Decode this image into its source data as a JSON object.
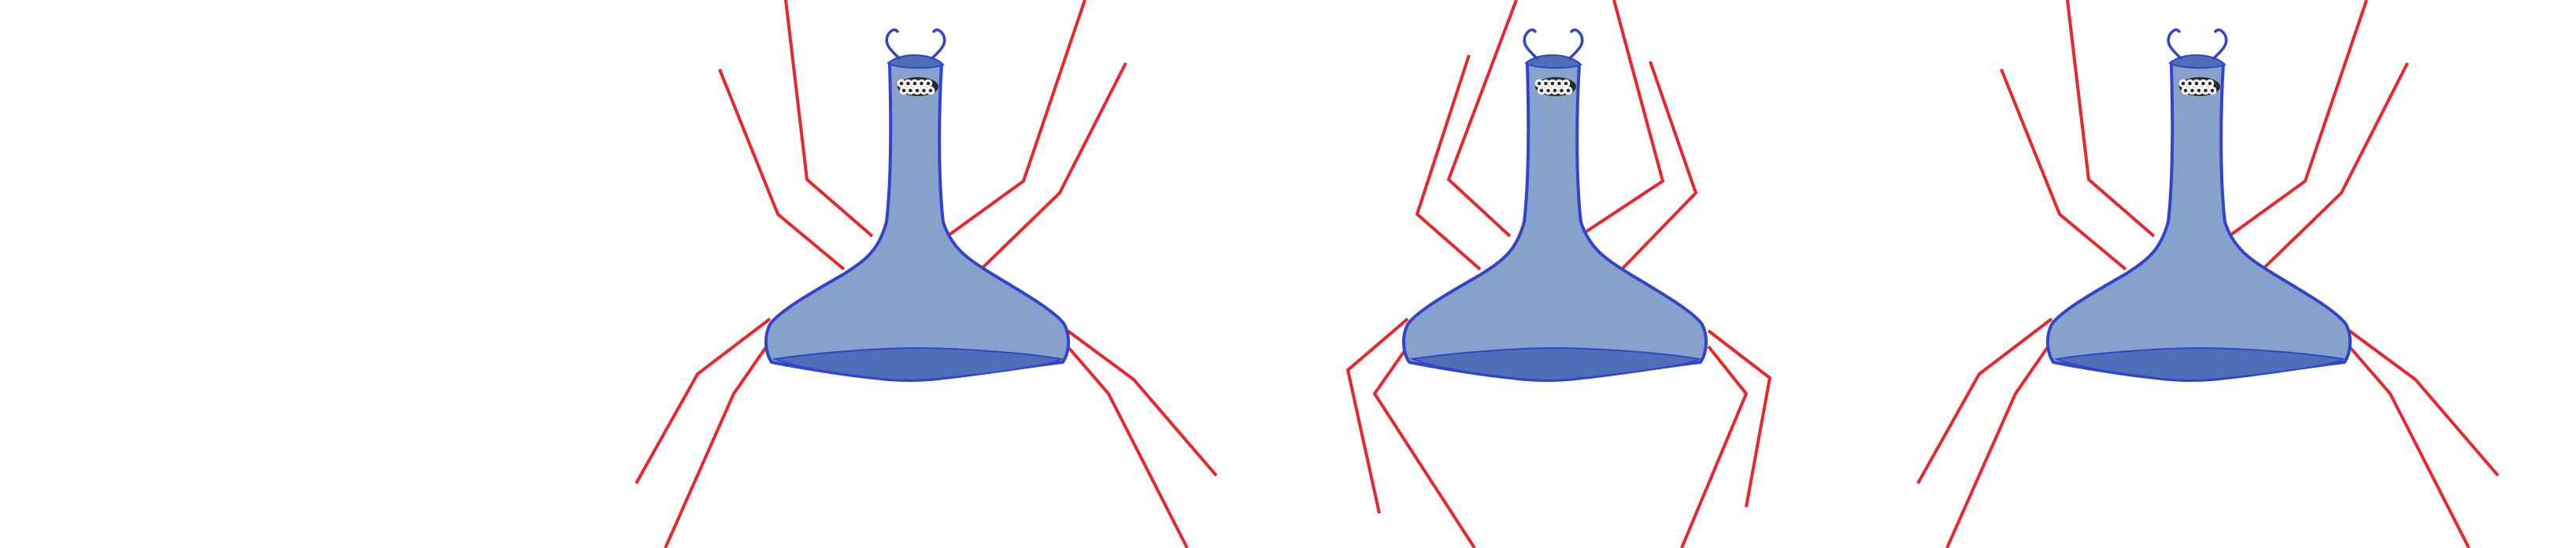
{
  "colors": {
    "background": "#ffffff",
    "body_fill": "#86a2cc",
    "body_stroke": "#3344cc",
    "band_fill": "#4f6eb8",
    "leg": "#e8262b",
    "eyes": "#111111"
  },
  "figures": [
    {
      "name": "water-strider-figure-1",
      "pose": "legs-spread-outward",
      "eye_count": 10
    },
    {
      "name": "water-strider-figure-2",
      "pose": "legs-bent-inward",
      "eye_count": 10
    },
    {
      "name": "water-strider-figure-3",
      "pose": "legs-spread-outward",
      "eye_count": 10
    }
  ]
}
